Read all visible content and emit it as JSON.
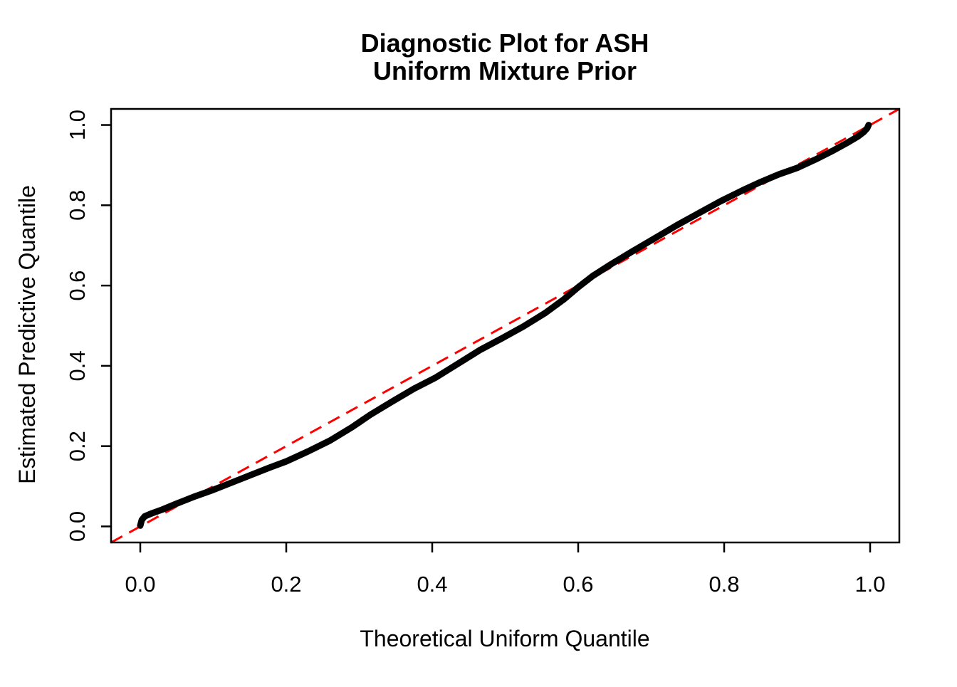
{
  "title": {
    "line1": "Diagnostic Plot for ASH",
    "line2": "Uniform Mixture Prior"
  },
  "axes": {
    "x_label": "Theoretical Uniform Quantile",
    "y_label": "Estimated Predictive Quantile",
    "x_tick_labels": [
      "0.0",
      "0.2",
      "0.4",
      "0.6",
      "0.8",
      "1.0"
    ],
    "y_tick_labels": [
      "0.0",
      "0.2",
      "0.4",
      "0.6",
      "0.8",
      "1.0"
    ]
  },
  "colors": {
    "curve": "#000000",
    "reference_line": "#FF0000",
    "box": "#000000",
    "background": "#FFFFFF"
  },
  "chart_data": {
    "type": "line",
    "title": "Diagnostic Plot for ASH\nUniform Mixture Prior",
    "xlabel": "Theoretical Uniform Quantile",
    "ylabel": "Estimated Predictive Quantile",
    "xlim": [
      -0.04,
      1.04
    ],
    "ylim": [
      -0.04,
      1.04
    ],
    "x_ticks": [
      0.0,
      0.2,
      0.4,
      0.6,
      0.8,
      1.0
    ],
    "y_ticks": [
      0.0,
      0.2,
      0.4,
      0.6,
      0.8,
      1.0
    ],
    "grid": false,
    "legend_position": "none",
    "series": [
      {
        "name": "estimated-predictive-quantile-curve",
        "type": "line",
        "color": "#000000",
        "stroke_width": 9,
        "points": [
          [
            0.0,
            0.002
          ],
          [
            0.002,
            0.016
          ],
          [
            0.006,
            0.025
          ],
          [
            0.015,
            0.032
          ],
          [
            0.03,
            0.042
          ],
          [
            0.05,
            0.057
          ],
          [
            0.075,
            0.075
          ],
          [
            0.1,
            0.091
          ],
          [
            0.125,
            0.109
          ],
          [
            0.15,
            0.127
          ],
          [
            0.175,
            0.145
          ],
          [
            0.2,
            0.162
          ],
          [
            0.23,
            0.187
          ],
          [
            0.26,
            0.214
          ],
          [
            0.29,
            0.247
          ],
          [
            0.315,
            0.278
          ],
          [
            0.345,
            0.311
          ],
          [
            0.375,
            0.343
          ],
          [
            0.405,
            0.371
          ],
          [
            0.435,
            0.405
          ],
          [
            0.465,
            0.439
          ],
          [
            0.495,
            0.468
          ],
          [
            0.525,
            0.498
          ],
          [
            0.555,
            0.532
          ],
          [
            0.58,
            0.565
          ],
          [
            0.6,
            0.596
          ],
          [
            0.62,
            0.624
          ],
          [
            0.645,
            0.653
          ],
          [
            0.675,
            0.686
          ],
          [
            0.705,
            0.718
          ],
          [
            0.735,
            0.75
          ],
          [
            0.765,
            0.78
          ],
          [
            0.795,
            0.81
          ],
          [
            0.825,
            0.837
          ],
          [
            0.85,
            0.858
          ],
          [
            0.875,
            0.877
          ],
          [
            0.9,
            0.893
          ],
          [
            0.925,
            0.914
          ],
          [
            0.95,
            0.937
          ],
          [
            0.97,
            0.957
          ],
          [
            0.983,
            0.971
          ],
          [
            0.991,
            0.982
          ],
          [
            0.996,
            0.992
          ],
          [
            0.998,
            1.0
          ]
        ]
      },
      {
        "name": "reference-diagonal",
        "type": "dashed-line",
        "color": "#FF0000",
        "stroke_width": 3,
        "dash": [
          18,
          11
        ],
        "points": [
          [
            -0.04,
            -0.04
          ],
          [
            1.04,
            1.04
          ]
        ]
      }
    ]
  }
}
